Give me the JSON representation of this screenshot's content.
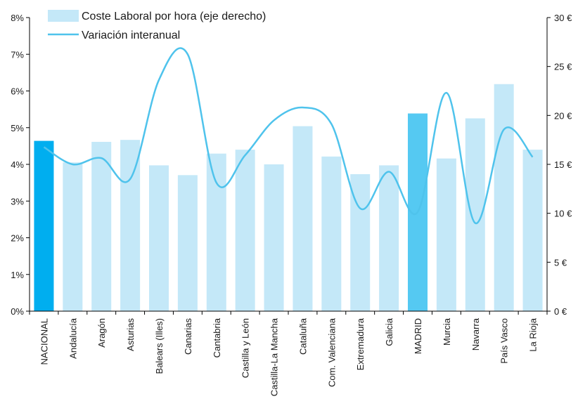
{
  "chart_data": {
    "type": "bar",
    "categories": [
      "NACIONAL",
      "Andalucía",
      "Aragón",
      "Asturias",
      "Balears (Illes)",
      "Canarias",
      "Cantabria",
      "Castilla y León",
      "Castilla-La Mancha",
      "Cataluña",
      "Com. Valenciana",
      "Extremadura",
      "Galicia",
      "MADRID",
      "Murcia",
      "Navarra",
      "País Vasco",
      "La Rioja"
    ],
    "series": [
      {
        "name": "Coste Laboral por hora (eje derecho)",
        "type": "bar",
        "axis": "right",
        "values": [
          17.4,
          15.2,
          17.3,
          17.5,
          14.9,
          13.9,
          16.1,
          16.5,
          15.0,
          18.9,
          15.8,
          14.0,
          14.9,
          20.2,
          15.6,
          19.7,
          23.2,
          16.5
        ]
      },
      {
        "name": "Variación interanual",
        "type": "line",
        "axis": "left",
        "values": [
          4.47,
          4.0,
          4.17,
          3.6,
          6.3,
          7.0,
          3.5,
          4.25,
          5.2,
          5.55,
          5.1,
          2.8,
          3.8,
          2.7,
          5.95,
          2.4,
          4.95,
          4.2
        ]
      }
    ],
    "highlight_color": "#00aeef",
    "highlight_color_2": "#55c9f2",
    "bar_color": "#c4e8f8",
    "line_color": "#4fc3ec",
    "y_left": {
      "min": 0,
      "max": 8,
      "ticks": [
        "0%",
        "1%",
        "2%",
        "3%",
        "4%",
        "5%",
        "6%",
        "7%",
        "8%"
      ]
    },
    "y_right": {
      "min": 0,
      "max": 30,
      "ticks": [
        "0 €",
        "5 €",
        "10 €",
        "15 €",
        "20 €",
        "25 €",
        "30 €"
      ]
    },
    "legend": {
      "position": "top-left",
      "bar_label": "Coste Laboral por hora (eje derecho)",
      "line_label": "Variación interanual"
    },
    "grid": false
  }
}
